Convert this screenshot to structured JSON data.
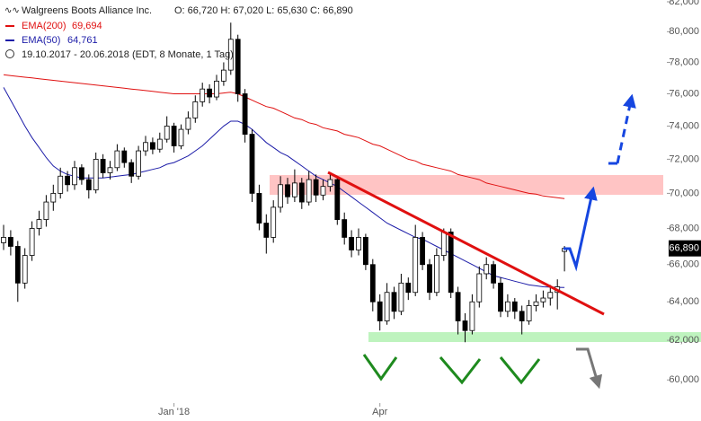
{
  "chart_data": {
    "type": "candlestick",
    "title": "Walgreens Boots Alliance Inc.",
    "ohlc_text": "O: 66,720  H: 67,020  L: 65,630  C: 66,890",
    "range_text": "19.10.2017 - 20.06.2018 (EDT, 8 Monate, 1 Tag)",
    "log_y": true,
    "up_color": "#ffffff",
    "down_color": "#000000",
    "ylim": [
      58000,
      82000
    ],
    "yticks": [
      {
        "value": 60000,
        "label": "60,000"
      },
      {
        "value": 62000,
        "label": "62,000"
      },
      {
        "value": 64000,
        "label": "64,000"
      },
      {
        "value": 66000,
        "label": "66,000"
      },
      {
        "value": 68000,
        "label": "68,000"
      },
      {
        "value": 70000,
        "label": "70,000"
      },
      {
        "value": 72000,
        "label": "72,000"
      },
      {
        "value": 74000,
        "label": "74,000"
      },
      {
        "value": 76000,
        "label": "76,000"
      },
      {
        "value": 78000,
        "label": "78,000"
      },
      {
        "value": 80000,
        "label": "80,000"
      },
      {
        "value": 82000,
        "label": "82,000"
      }
    ],
    "last_price": {
      "value": 66890,
      "label": "66,890"
    },
    "categories": [
      null,
      null,
      null,
      null,
      null,
      null,
      null,
      null,
      null,
      null,
      null,
      null,
      null,
      null,
      null,
      null,
      null,
      null,
      null,
      null,
      null,
      null,
      null,
      null,
      "Jan '18",
      null,
      null,
      null,
      null,
      null,
      null,
      null,
      null,
      null,
      null,
      null,
      null,
      null,
      null,
      null,
      null,
      null,
      null,
      null,
      null,
      null,
      null,
      null,
      null,
      null,
      null,
      null,
      null,
      "Apr",
      null,
      null,
      null,
      null,
      null,
      null,
      null,
      null,
      null,
      null,
      null,
      null,
      null,
      null,
      null,
      null,
      null,
      null,
      null,
      null,
      null,
      null,
      null,
      null,
      null,
      null
    ],
    "ohlc": [
      [
        67200,
        68200,
        66800,
        67500
      ],
      [
        67500,
        67900,
        66500,
        67000
      ],
      [
        67000,
        67300,
        64000,
        65000
      ],
      [
        65000,
        66900,
        64700,
        66500
      ],
      [
        66500,
        68400,
        66200,
        68000
      ],
      [
        68000,
        69000,
        67600,
        68500
      ],
      [
        68500,
        69900,
        68100,
        69500
      ],
      [
        69500,
        70500,
        69000,
        70000
      ],
      [
        70000,
        71500,
        69700,
        71000
      ],
      [
        71000,
        71300,
        70100,
        70500
      ],
      [
        70500,
        71900,
        70200,
        71500
      ],
      [
        71500,
        71700,
        70500,
        70800
      ],
      [
        70800,
        71100,
        69700,
        70200
      ],
      [
        70200,
        72400,
        70000,
        72000
      ],
      [
        72000,
        72300,
        70900,
        71200
      ],
      [
        71200,
        71900,
        70800,
        71500
      ],
      [
        71500,
        72900,
        71300,
        72500
      ],
      [
        72500,
        72700,
        71500,
        71800
      ],
      [
        71800,
        72000,
        70600,
        71000
      ],
      [
        71000,
        72800,
        70800,
        72500
      ],
      [
        72500,
        73400,
        72200,
        73000
      ],
      [
        73000,
        73300,
        72300,
        72600
      ],
      [
        72600,
        73600,
        72400,
        73200
      ],
      [
        73200,
        74600,
        73000,
        74000
      ],
      [
        74000,
        74200,
        72400,
        72800
      ],
      [
        72800,
        74100,
        72600,
        73800
      ],
      [
        73800,
        74900,
        73500,
        74500
      ],
      [
        74500,
        75900,
        74200,
        75500
      ],
      [
        75500,
        76700,
        75200,
        76300
      ],
      [
        76300,
        76600,
        75400,
        75800
      ],
      [
        75800,
        77200,
        75600,
        76800
      ],
      [
        76800,
        78000,
        76500,
        77500
      ],
      [
        77500,
        80600,
        77200,
        79500
      ],
      [
        79500,
        79800,
        75500,
        76000
      ],
      [
        76000,
        76300,
        73000,
        73500
      ],
      [
        73500,
        73800,
        69500,
        70000
      ],
      [
        70000,
        70500,
        67900,
        68300
      ],
      [
        68300,
        68800,
        66600,
        67500
      ],
      [
        67500,
        69600,
        67200,
        69200
      ],
      [
        69200,
        71000,
        68900,
        70500
      ],
      [
        70500,
        70900,
        69400,
        69800
      ],
      [
        69800,
        71400,
        69500,
        70600
      ],
      [
        70600,
        70900,
        69100,
        69500
      ],
      [
        69500,
        71300,
        69300,
        70800
      ],
      [
        70800,
        71100,
        69500,
        69900
      ],
      [
        69900,
        70800,
        69600,
        70400
      ],
      [
        70400,
        71200,
        70100,
        70800
      ],
      [
        70800,
        71000,
        68200,
        68500
      ],
      [
        68500,
        68900,
        67100,
        67500
      ],
      [
        67500,
        67900,
        66400,
        66800
      ],
      [
        66800,
        68000,
        66500,
        67500
      ],
      [
        67500,
        67700,
        65700,
        66000
      ],
      [
        66000,
        66300,
        63500,
        64000
      ],
      [
        64000,
        64400,
        62500,
        63000
      ],
      [
        63000,
        65000,
        62800,
        64500
      ],
      [
        64500,
        64800,
        63100,
        63500
      ],
      [
        63500,
        65500,
        63300,
        65000
      ],
      [
        65000,
        65300,
        64100,
        64500
      ],
      [
        64500,
        68200,
        64300,
        67500
      ],
      [
        67500,
        67800,
        65700,
        66000
      ],
      [
        66000,
        66300,
        64100,
        64500
      ],
      [
        64500,
        66900,
        64300,
        66500
      ],
      [
        66500,
        68000,
        66200,
        67800
      ],
      [
        67800,
        68000,
        64200,
        64500
      ],
      [
        64500,
        64800,
        62300,
        63000
      ],
      [
        63000,
        63400,
        61900,
        62500
      ],
      [
        62500,
        64400,
        62300,
        64000
      ],
      [
        64000,
        65900,
        63700,
        65500
      ],
      [
        65500,
        66400,
        65200,
        66000
      ],
      [
        66000,
        66200,
        64700,
        65000
      ],
      [
        65000,
        65300,
        63200,
        63500
      ],
      [
        63500,
        64400,
        63200,
        64000
      ],
      [
        64000,
        64200,
        63100,
        63500
      ],
      [
        63500,
        63800,
        62300,
        63000
      ],
      [
        63000,
        64100,
        62800,
        63800
      ],
      [
        63800,
        64400,
        63500,
        64000
      ],
      [
        64000,
        64600,
        63700,
        64200
      ],
      [
        64200,
        64900,
        63800,
        64500
      ],
      [
        64500,
        65200,
        63600,
        64800
      ],
      [
        66720,
        67020,
        65630,
        66890
      ]
    ],
    "series": [
      {
        "name": "EMA(200)",
        "color": "#e01010",
        "value_label": "69,694",
        "values": [
          77200,
          77150,
          77100,
          77050,
          77000,
          76950,
          76900,
          76850,
          76800,
          76750,
          76700,
          76650,
          76600,
          76550,
          76500,
          76450,
          76400,
          76350,
          76300,
          76250,
          76200,
          76150,
          76100,
          76050,
          76000,
          76000,
          76000,
          76000,
          76000,
          76000,
          76000,
          76050,
          76100,
          76000,
          75800,
          75600,
          75400,
          75200,
          75100,
          74900,
          74700,
          74500,
          74400,
          74200,
          74100,
          73900,
          73800,
          73700,
          73500,
          73400,
          73300,
          73100,
          72900,
          72800,
          72600,
          72400,
          72200,
          72000,
          71900,
          71700,
          71600,
          71500,
          71400,
          71300,
          71100,
          71000,
          70900,
          70800,
          70600,
          70500,
          70400,
          70300,
          70200,
          70100,
          70000,
          69950,
          69850,
          69800,
          69750,
          69694
        ]
      },
      {
        "name": "EMA(50)",
        "color": "#1c1ca8",
        "value_label": "64,761",
        "values": [
          76400,
          75600,
          74800,
          74000,
          73300,
          72700,
          72100,
          71600,
          71300,
          71100,
          71000,
          70900,
          70900,
          70900,
          70900,
          70950,
          71000,
          71050,
          71100,
          71200,
          71300,
          71400,
          71500,
          71700,
          71800,
          72000,
          72200,
          72500,
          72800,
          73200,
          73600,
          74000,
          74300,
          74300,
          74100,
          73800,
          73400,
          73000,
          72700,
          72400,
          72200,
          71900,
          71600,
          71300,
          71000,
          70800,
          70600,
          70400,
          70100,
          69800,
          69500,
          69200,
          68900,
          68600,
          68300,
          68100,
          67900,
          67700,
          67500,
          67400,
          67200,
          67000,
          66800,
          66600,
          66400,
          66200,
          66000,
          65800,
          65600,
          65400,
          65300,
          65200,
          65100,
          65000,
          64900,
          64850,
          64800,
          64780,
          64770,
          64761
        ]
      }
    ]
  }
}
